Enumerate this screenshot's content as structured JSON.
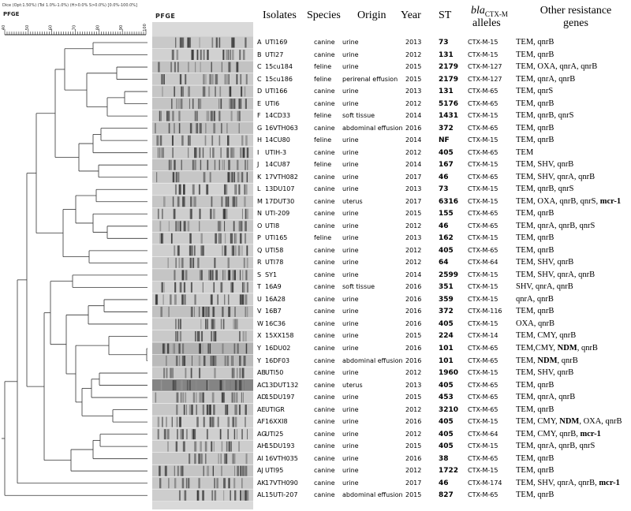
{
  "header": {
    "meta_text": "Dice (Opt:1.50%) (Tol 1.0%-1.0%) (H>0.0% S>0.0%) [0.0%-100.0%]",
    "pfge_left": "PFGE",
    "pfge_panel": "PFGE",
    "scale_ticks": [
      "40",
      "50",
      "60",
      "70",
      "80",
      "90",
      "100"
    ],
    "col_isolates": "Isolates",
    "col_species": "Species",
    "col_origin": "Origin",
    "col_year": "Year",
    "col_st": "ST",
    "col_allele_italic": "bla",
    "col_allele_sub": "CTX-M",
    "col_allele_line2": "alleles",
    "col_genes_line1": "Other resistance",
    "col_genes_line2": "genes"
  },
  "rows": [
    {
      "letter": "A",
      "isolate": "UTI169",
      "species": "canine",
      "origin": "urine",
      "year": "2013",
      "st": "73",
      "allele": "CTX-M-15",
      "genes": [
        {
          "t": "TEM, qnrB",
          "b": false
        }
      ]
    },
    {
      "letter": "B",
      "isolate": "UTI27",
      "species": "canine",
      "origin": "urine",
      "year": "2012",
      "st": "131",
      "allele": "CTX-M-15",
      "genes": [
        {
          "t": "TEM, qnrB",
          "b": false
        }
      ]
    },
    {
      "letter": "C",
      "isolate": "15cu184",
      "species": "feline",
      "origin": "urine",
      "year": "2015",
      "st": "2179",
      "allele": "CTX-M-127",
      "genes": [
        {
          "t": "TEM, OXA, qnrA, qnrB",
          "b": false
        }
      ]
    },
    {
      "letter": "C",
      "isolate": "15cu186",
      "species": "feline",
      "origin": "perirenal effusion",
      "year": "2015",
      "st": "2179",
      "allele": "CTX-M-127",
      "genes": [
        {
          "t": "TEM, qnrA, qnrB",
          "b": false
        }
      ]
    },
    {
      "letter": "D",
      "isolate": "UTI166",
      "species": "canine",
      "origin": "urine",
      "year": "2013",
      "st": "131",
      "allele": "CTX-M-65",
      "genes": [
        {
          "t": "TEM, qnrS",
          "b": false
        }
      ]
    },
    {
      "letter": "E",
      "isolate": "UTI6",
      "species": "canine",
      "origin": "urine",
      "year": "2012",
      "st": "5176",
      "allele": "CTX-M-65",
      "genes": [
        {
          "t": "TEM, qnrB",
          "b": false
        }
      ]
    },
    {
      "letter": "F",
      "isolate": "14CD33",
      "species": "feline",
      "origin": "soft tissue",
      "year": "2014",
      "st": "1431",
      "allele": "CTX-M-15",
      "genes": [
        {
          "t": "TEM, qnrB, qnrS",
          "b": false
        }
      ]
    },
    {
      "letter": "G",
      "isolate": "16VTH063",
      "species": "canine",
      "origin": "abdominal effusion",
      "year": "2016",
      "st": "372",
      "allele": "CTX-M-65",
      "genes": [
        {
          "t": "TEM, qnrB",
          "b": false
        }
      ]
    },
    {
      "letter": "H",
      "isolate": "14CU80",
      "species": "feline",
      "origin": "urine",
      "year": "2014",
      "st": "NF",
      "allele": "CTX-M-15",
      "genes": [
        {
          "t": "TEM, qnrB",
          "b": false
        }
      ]
    },
    {
      "letter": "I",
      "isolate": "UTIH-3",
      "species": "canine",
      "origin": "urine",
      "year": "2012",
      "st": "405",
      "allele": "CTX-M-65",
      "genes": [
        {
          "t": "TEM",
          "b": false
        }
      ]
    },
    {
      "letter": "J",
      "isolate": "14CU87",
      "species": "feline",
      "origin": "urine",
      "year": "2014",
      "st": "167",
      "allele": "CTX-M-15",
      "genes": [
        {
          "t": "TEM, SHV, qnrB",
          "b": false
        }
      ]
    },
    {
      "letter": "K",
      "isolate": "17VTH082",
      "species": "canine",
      "origin": "urine",
      "year": "2017",
      "st": "46",
      "allele": "CTX-M-65",
      "genes": [
        {
          "t": "TEM, SHV, qnrA, qnrB",
          "b": false
        }
      ]
    },
    {
      "letter": "L",
      "isolate": "13DU107",
      "species": "canine",
      "origin": "urine",
      "year": "2013",
      "st": "73",
      "allele": "CTX-M-15",
      "genes": [
        {
          "t": "TEM, qnrB, qnrS",
          "b": false
        }
      ]
    },
    {
      "letter": "M",
      "isolate": "17DUT30",
      "species": "canine",
      "origin": "uterus",
      "year": "2017",
      "st": "6316",
      "allele": "CTX-M-15",
      "genes": [
        {
          "t": "TEM, OXA, qnrB, qnrS, ",
          "b": false
        },
        {
          "t": "mcr-1",
          "b": true
        }
      ]
    },
    {
      "letter": "N",
      "isolate": "UTI-209",
      "species": "canine",
      "origin": "urine",
      "year": "2015",
      "st": "155",
      "allele": "CTX-M-65",
      "genes": [
        {
          "t": "TEM, qnrB",
          "b": false
        }
      ]
    },
    {
      "letter": "O",
      "isolate": "UTI8",
      "species": "canine",
      "origin": "urine",
      "year": "2012",
      "st": "46",
      "allele": "CTX-M-65",
      "genes": [
        {
          "t": "TEM, qnrA, qnrB, qnrS",
          "b": false
        }
      ]
    },
    {
      "letter": "P",
      "isolate": "UTI165",
      "species": "feline",
      "origin": "urine",
      "year": "2013",
      "st": "162",
      "allele": "CTX-M-15",
      "genes": [
        {
          "t": "TEM, qnrB",
          "b": false
        }
      ]
    },
    {
      "letter": "Q",
      "isolate": "UTI58",
      "species": "canine",
      "origin": "urine",
      "year": "2012",
      "st": "405",
      "allele": "CTX-M-65",
      "genes": [
        {
          "t": "TEM, qnrB",
          "b": false
        }
      ]
    },
    {
      "letter": "R",
      "isolate": "UTI78",
      "species": "canine",
      "origin": "urine",
      "year": "2012",
      "st": "64",
      "allele": "CTX-M-64",
      "genes": [
        {
          "t": "TEM, SHV, qnrB",
          "b": false
        }
      ]
    },
    {
      "letter": "S",
      "isolate": "SY1",
      "species": "canine",
      "origin": "urine",
      "year": "2014",
      "st": "2599",
      "allele": "CTX-M-15",
      "genes": [
        {
          "t": "TEM, SHV, qnrA, qnrB",
          "b": false
        }
      ]
    },
    {
      "letter": "T",
      "isolate": "16A9",
      "species": "canine",
      "origin": "soft tissue",
      "year": "2016",
      "st": "351",
      "allele": "CTX-M-15",
      "genes": [
        {
          "t": "SHV, qnrA, qnrB",
          "b": false
        }
      ]
    },
    {
      "letter": "U",
      "isolate": "16A28",
      "species": "canine",
      "origin": "urine",
      "year": "2016",
      "st": "359",
      "allele": "CTX-M-15",
      "genes": [
        {
          "t": "qnrA, qnrB",
          "b": false
        }
      ]
    },
    {
      "letter": "V",
      "isolate": "16B7",
      "species": "canine",
      "origin": "urine",
      "year": "2016",
      "st": "372",
      "allele": "CTX-M-116",
      "genes": [
        {
          "t": "TEM, qnrB",
          "b": false
        }
      ]
    },
    {
      "letter": "W",
      "isolate": "16C36",
      "species": "canine",
      "origin": "urine",
      "year": "2016",
      "st": "405",
      "allele": "CTX-M-15",
      "genes": [
        {
          "t": "OXA, qnrB",
          "b": false
        }
      ]
    },
    {
      "letter": "X",
      "isolate": "15XX158",
      "species": "canine",
      "origin": "urine",
      "year": "2015",
      "st": "224",
      "allele": "CTX-M-14",
      "genes": [
        {
          "t": "TEM, CMY, qnrB",
          "b": false
        }
      ]
    },
    {
      "letter": "Y",
      "isolate": "16DU02",
      "species": "canine",
      "origin": "urine",
      "year": "2016",
      "st": "101",
      "allele": "CTX-M-65",
      "genes": [
        {
          "t": "TEM,CMY, ",
          "b": false
        },
        {
          "t": "NDM",
          "b": true
        },
        {
          "t": ", qnrB",
          "b": false
        }
      ]
    },
    {
      "letter": "Y",
      "isolate": "16DF03",
      "species": "canine",
      "origin": "abdominal effusion",
      "year": "2016",
      "st": "101",
      "allele": "CTX-M-65",
      "genes": [
        {
          "t": "TEM, ",
          "b": false
        },
        {
          "t": "NDM",
          "b": true
        },
        {
          "t": ", qnrB",
          "b": false
        }
      ]
    },
    {
      "letter": "AB",
      "isolate": "UTI50",
      "species": "canine",
      "origin": "urine",
      "year": "2012",
      "st": "1960",
      "allele": "CTX-M-15",
      "genes": [
        {
          "t": "TEM, SHV, qnrB",
          "b": false
        }
      ]
    },
    {
      "letter": "AC",
      "isolate": "13DUT132",
      "species": "canine",
      "origin": "uterus",
      "year": "2013",
      "st": "405",
      "allele": "CTX-M-65",
      "genes": [
        {
          "t": "TEM, qnrB",
          "b": false
        }
      ]
    },
    {
      "letter": "AD",
      "isolate": "15DU197",
      "species": "canine",
      "origin": "urine",
      "year": "2015",
      "st": "453",
      "allele": "CTX-M-65",
      "genes": [
        {
          "t": "TEM, qnrA, qnrB",
          "b": false
        }
      ]
    },
    {
      "letter": "AE",
      "isolate": "UTIGR",
      "species": "canine",
      "origin": "urine",
      "year": "2012",
      "st": "3210",
      "allele": "CTX-M-65",
      "genes": [
        {
          "t": "TEM, qnrB",
          "b": false
        }
      ]
    },
    {
      "letter": "AF",
      "isolate": "16XXI8",
      "species": "canine",
      "origin": "urine",
      "year": "2016",
      "st": "405",
      "allele": "CTX-M-15",
      "genes": [
        {
          "t": "TEM, CMY, ",
          "b": false
        },
        {
          "t": "NDM",
          "b": true
        },
        {
          "t": ", OXA, qnrB",
          "b": false
        }
      ]
    },
    {
      "letter": "AG",
      "isolate": "UTI25",
      "species": "canine",
      "origin": "urine",
      "year": "2012",
      "st": "405",
      "allele": "CTX-M-64",
      "genes": [
        {
          "t": "TEM, CMY, qnrB, ",
          "b": false
        },
        {
          "t": "mcr-1",
          "b": true
        }
      ]
    },
    {
      "letter": "AH",
      "isolate": "15DU193",
      "species": "canine",
      "origin": "urine",
      "year": "2015",
      "st": "405",
      "allele": "CTX-M-15",
      "genes": [
        {
          "t": "TEM, qnrA, qnrB, qnrS",
          "b": false
        }
      ]
    },
    {
      "letter": "AI",
      "isolate": "16VTH035",
      "species": "canine",
      "origin": "urine",
      "year": "2016",
      "st": "38",
      "allele": "CTX-M-65",
      "genes": [
        {
          "t": "TEM, qnrB",
          "b": false
        }
      ]
    },
    {
      "letter": "AJ",
      "isolate": "UTI95",
      "species": "canine",
      "origin": "urine",
      "year": "2012",
      "st": "1722",
      "allele": "CTX-M-15",
      "genes": [
        {
          "t": "TEM, qnrB",
          "b": false
        }
      ]
    },
    {
      "letter": "AK",
      "isolate": "17VTH090",
      "species": "canine",
      "origin": "urine",
      "year": "2017",
      "st": "46",
      "allele": "CTX-M-174",
      "genes": [
        {
          "t": "TEM, SHV, qnrA, qnrB, ",
          "b": false
        },
        {
          "t": "mcr-1",
          "b": true
        }
      ]
    },
    {
      "letter": "AL",
      "isolate": "15UTI-207",
      "species": "canine",
      "origin": "abdominal effusion",
      "year": "2015",
      "st": "827",
      "allele": "CTX-M-65",
      "genes": [
        {
          "t": "TEM, qnrB",
          "b": false
        }
      ]
    }
  ]
}
